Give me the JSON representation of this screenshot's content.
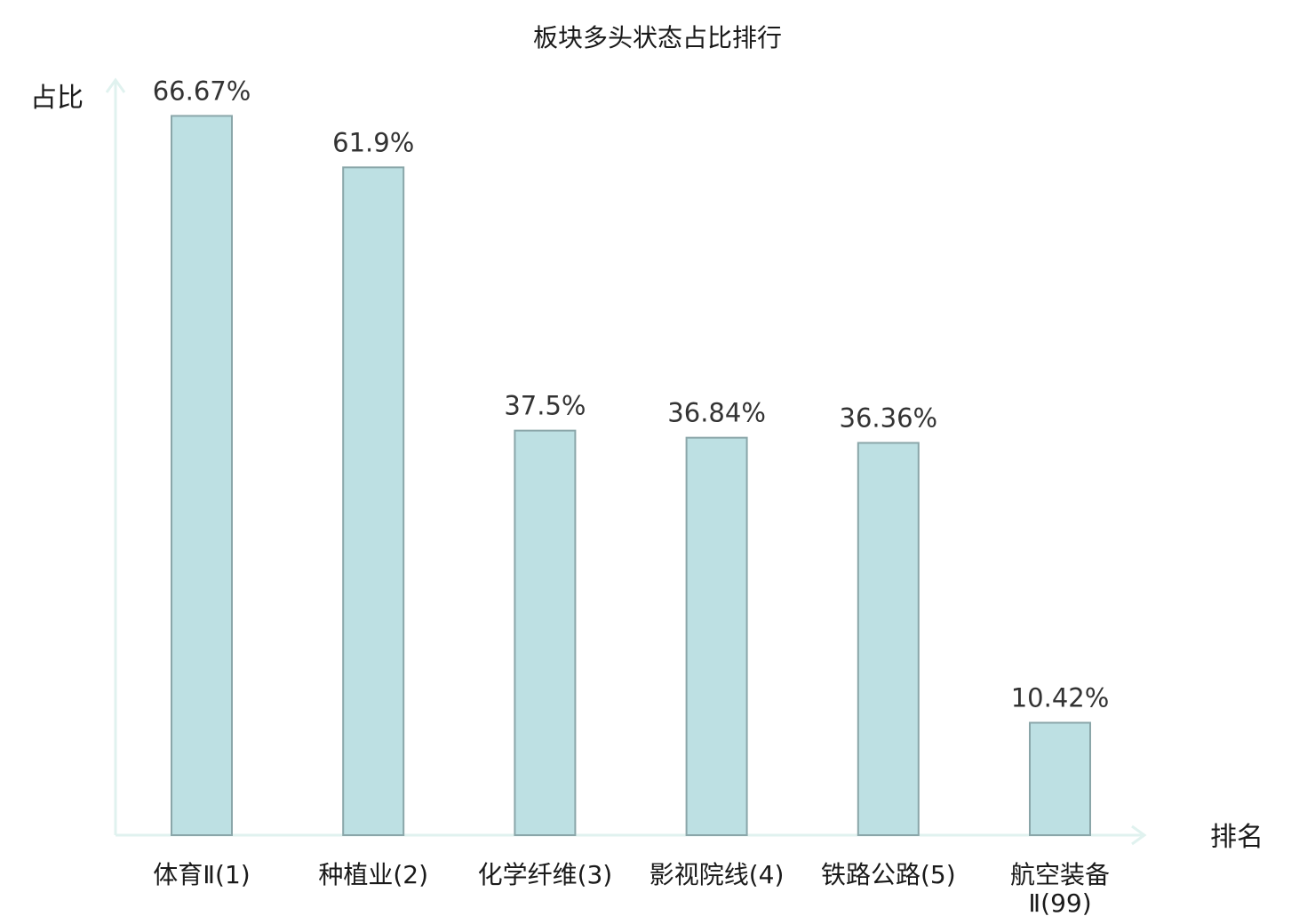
{
  "chart_data": {
    "type": "bar",
    "title": "板块多头状态占比排行",
    "xlabel": "排名",
    "ylabel": "占比",
    "categories": [
      "体育Ⅱ(1)",
      "种植业(2)",
      "化学纤维(3)",
      "影视院线(4)",
      "铁路公路(5)",
      "航空装备Ⅱ(99)"
    ],
    "category_lines": [
      [
        "体育Ⅱ(1)"
      ],
      [
        "种植业(2)"
      ],
      [
        "化学纤维(3)"
      ],
      [
        "影视院线(4)"
      ],
      [
        "铁路公路(5)"
      ],
      [
        "航空装备",
        "Ⅱ(99)"
      ]
    ],
    "values": [
      66.67,
      61.9,
      37.5,
      36.84,
      36.36,
      10.42
    ],
    "value_labels": [
      "66.67%",
      "61.9%",
      "37.5%",
      "36.84%",
      "36.36%",
      "10.42%"
    ],
    "highlight_index": 5,
    "ylim": [
      0,
      70
    ],
    "grid": false,
    "colors": {
      "bar_fill": "#bde0e3",
      "bar_stroke": "#8aa6a9",
      "axis": "#e0f2ef",
      "highlight_text": "#e02020",
      "text": "#1a1a1a",
      "value_text": "#333333"
    }
  }
}
